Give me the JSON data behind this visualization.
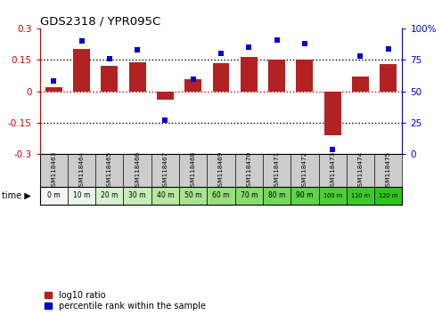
{
  "title": "GDS2318 / YPR095C",
  "categories": [
    "GSM118463",
    "GSM118464",
    "GSM118465",
    "GSM118466",
    "GSM118467",
    "GSM118468",
    "GSM118469",
    "GSM118470",
    "GSM118471",
    "GSM118472",
    "GSM118473",
    "GSM118474",
    "GSM118475"
  ],
  "time_labels": [
    "0 m",
    "10 m",
    "20 m",
    "30 m",
    "40 m",
    "50 m",
    "60 m",
    "70 m",
    "80 m",
    "90 m",
    "100 m",
    "110 m",
    "120 m"
  ],
  "log10_ratio": [
    0.02,
    0.2,
    0.12,
    0.14,
    -0.04,
    0.06,
    0.135,
    0.165,
    0.15,
    0.15,
    -0.21,
    0.07,
    0.13
  ],
  "percentile_rank": [
    58,
    90,
    76,
    83,
    27,
    60,
    80,
    85,
    91,
    88,
    4,
    78,
    84
  ],
  "bar_color": "#b22222",
  "dot_color": "#0000cc",
  "ylim_left": [
    -0.3,
    0.3
  ],
  "ylim_right": [
    0,
    100
  ],
  "yticks_left": [
    -0.3,
    -0.15,
    0,
    0.15,
    0.3
  ],
  "yticks_right": [
    0,
    25,
    50,
    75,
    100
  ],
  "ytick_labels_left": [
    "-0.3",
    "-0.15",
    "0",
    "0.15",
    "0.3"
  ],
  "ytick_labels_right": [
    "0",
    "25",
    "50",
    "75",
    "100%"
  ],
  "hlines_dotted": [
    0.15,
    -0.15
  ],
  "hline_zero_color": "#cc0000",
  "dotted_color": "black",
  "left_axis_color": "#cc0000",
  "right_axis_color": "#0000cc",
  "bar_width": 0.6,
  "time_colors": [
    "#f5f5f5",
    "#eaf5ea",
    "#d8f0d0",
    "#c8ecb8",
    "#b8e8a0",
    "#a8e490",
    "#98e07e",
    "#86dc6c",
    "#72d85a",
    "#5ed448",
    "#4ecc3a",
    "#3ec82c",
    "#2ec41c"
  ],
  "legend_bar_label": "log10 ratio",
  "legend_dot_label": "percentile rank within the sample"
}
